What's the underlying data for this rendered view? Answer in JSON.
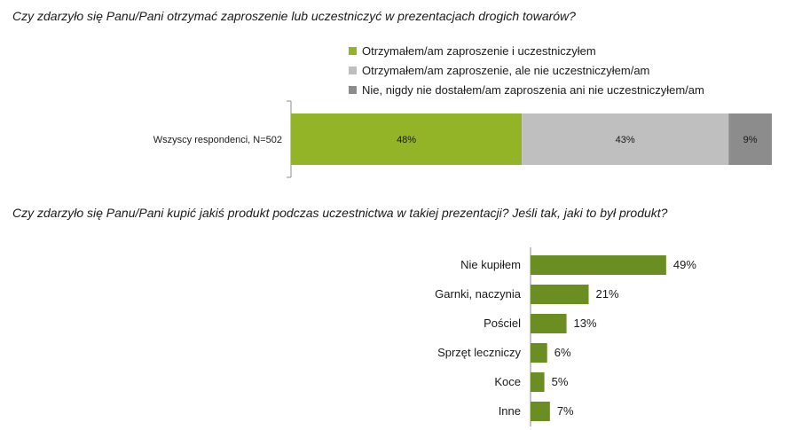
{
  "question1": "Czy zdarzyło się Panu/Pani otrzymać zaproszenie lub uczestniczyć w prezentacjach drogich towarów?",
  "question2": "Czy zdarzyło się Panu/Pani kupić jakiś produkt podczas uczestnictwa w takiej prezentacji? Jeśli tak, jaki to był produkt?",
  "chart_data": [
    {
      "type": "bar",
      "stacked": true,
      "orientation": "horizontal",
      "categories": [
        "Wszyscy respondenci, N=502"
      ],
      "series": [
        {
          "name": "Otrzymałem/am zaproszenie i uczestniczyłem",
          "values": [
            48
          ],
          "label": "48%",
          "color": "#93b427"
        },
        {
          "name": "Otrzymałem/am zaproszenie, ale nie uczestniczyłem/am",
          "values": [
            43
          ],
          "label": "43%",
          "color": "#bfbfbf"
        },
        {
          "name": "Nie, nigdy nie dostałem/am zaproszenia ani nie uczestniczyłem/am",
          "values": [
            9
          ],
          "label": "9%",
          "color": "#8c8c8c"
        }
      ],
      "xlim": [
        0,
        100
      ],
      "legend": "top"
    },
    {
      "type": "bar",
      "orientation": "horizontal",
      "categories": [
        "Nie kupiłem",
        "Garnki, naczynia",
        "Pościel",
        "Sprzęt leczniczy",
        "Koce",
        "Inne"
      ],
      "values": [
        49,
        21,
        13,
        6,
        5,
        7
      ],
      "labels": [
        "49%",
        "21%",
        "13%",
        "6%",
        "5%",
        "7%"
      ],
      "color": "#6b8e23",
      "xlim": [
        0,
        100
      ]
    }
  ]
}
